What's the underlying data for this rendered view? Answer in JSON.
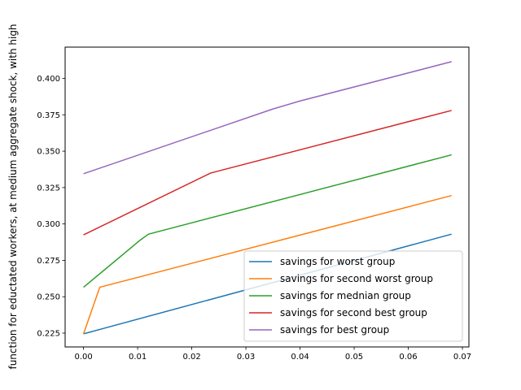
{
  "chart_data": {
    "type": "line",
    "title": "",
    "xlabel": "",
    "ylabel": "function for eductated workers, at medium aggregate shock, with high",
    "xlim": [
      -0.0034,
      0.0712
    ],
    "ylim": [
      0.2155,
      0.4215
    ],
    "xticks": [
      0.0,
      0.01,
      0.02,
      0.03,
      0.04,
      0.05,
      0.06,
      0.07
    ],
    "xtick_labels": [
      "0.00",
      "0.01",
      "0.02",
      "0.03",
      "0.04",
      "0.05",
      "0.06",
      "0.07"
    ],
    "yticks": [
      0.225,
      0.25,
      0.275,
      0.3,
      0.325,
      0.35,
      0.375,
      0.4
    ],
    "ytick_labels": [
      "0.225",
      "0.250",
      "0.275",
      "0.300",
      "0.325",
      "0.350",
      "0.375",
      "0.400"
    ],
    "grid": false,
    "legend_position": "lower-right",
    "series": [
      {
        "name": "savings for worst group",
        "color": "#1f77b4",
        "x": [
          0.0,
          0.068
        ],
        "y": [
          0.2245,
          0.293
        ]
      },
      {
        "name": "savings for second worst group",
        "color": "#ff7f0e",
        "x": [
          0.0,
          0.003,
          0.068
        ],
        "y": [
          0.2245,
          0.2565,
          0.3195
        ]
      },
      {
        "name": "savings for mednian group",
        "color": "#2ca02c",
        "x": [
          0.0,
          0.0105,
          0.012,
          0.068
        ],
        "y": [
          0.2565,
          0.289,
          0.293,
          0.3475
        ]
      },
      {
        "name": "savings for second best group",
        "color": "#d62728",
        "x": [
          0.0,
          0.0235,
          0.068
        ],
        "y": [
          0.2925,
          0.335,
          0.378
        ]
      },
      {
        "name": "savings for best group",
        "color": "#9467bd",
        "x": [
          0.0,
          0.035,
          0.04,
          0.068
        ],
        "y": [
          0.3345,
          0.379,
          0.3845,
          0.4115
        ]
      }
    ]
  }
}
